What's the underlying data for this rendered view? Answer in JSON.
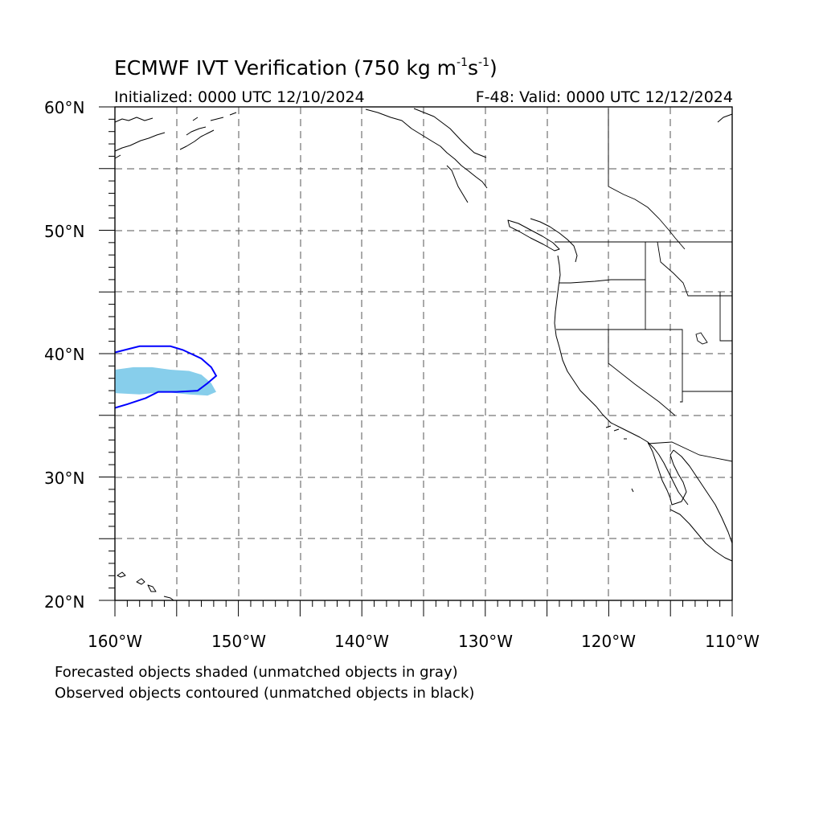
{
  "title": {
    "prefix": "ECMWF IVT Verification (750 kg m",
    "exp1": "-1",
    "mid": "s",
    "exp2": "-1",
    "suffix": ")"
  },
  "initialized": "Initialized: 0000 UTC 12/10/2024",
  "valid": "F-48: Valid: 0000 UTC 12/12/2024",
  "lat_labels": [
    "60°N",
    "50°N",
    "40°N",
    "30°N",
    "20°N"
  ],
  "lon_labels": [
    "160°W",
    "150°W",
    "140°W",
    "130°W",
    "120°W",
    "110°W"
  ],
  "notes": {
    "forecast": "Forecasted objects shaded (unmatched objects in gray)",
    "observed": "Observed objects contoured (unmatched objects in black)"
  },
  "map": {
    "extent": {
      "lon_min": -160,
      "lon_max": -110,
      "lat_min": 20,
      "lat_max": 60
    },
    "colors": {
      "forecast_fill": "#87ceeb",
      "observed_contour": "#0000ff",
      "grid": "#555555",
      "coastline": "#000000"
    },
    "forecast_object": {
      "label": "forecast IVT object (matched)",
      "lonlat": [
        [
          -160,
          38.7
        ],
        [
          -158.5,
          38.9
        ],
        [
          -157,
          38.9
        ],
        [
          -155.5,
          38.7
        ],
        [
          -154,
          38.6
        ],
        [
          -153,
          38.3
        ],
        [
          -152.2,
          37.6
        ],
        [
          -151.8,
          36.9
        ],
        [
          -152.5,
          36.6
        ],
        [
          -154,
          36.7
        ],
        [
          -156,
          36.9
        ],
        [
          -158,
          36.7
        ],
        [
          -160,
          36.8
        ]
      ]
    },
    "observed_object": {
      "label": "observed IVT object (matched)",
      "lonlat": [
        [
          -160,
          40.1
        ],
        [
          -158,
          40.6
        ],
        [
          -156,
          40.6
        ],
        [
          -155.5,
          40.6
        ],
        [
          -154.5,
          40.3
        ],
        [
          -153,
          39.6
        ],
        [
          -152.2,
          38.9
        ],
        [
          -151.8,
          38.2
        ],
        [
          -152.5,
          37.6
        ],
        [
          -153.3,
          37.0
        ],
        [
          -155,
          36.9
        ],
        [
          -156.5,
          36.9
        ],
        [
          -157.5,
          36.4
        ],
        [
          -159,
          35.9
        ],
        [
          -160,
          35.6
        ]
      ]
    }
  }
}
